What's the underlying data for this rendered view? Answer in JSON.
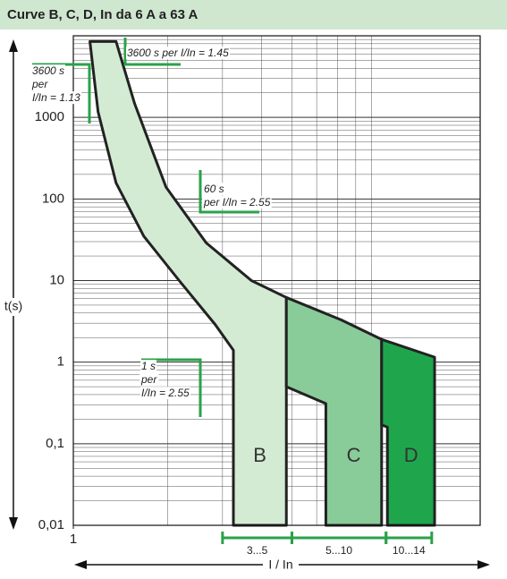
{
  "chart_data": {
    "type": "zones",
    "title": "Curve B, C, D,  In da 6 A a 63 A",
    "y_label": "t(s)",
    "x_label": "I / In",
    "log_x": true,
    "log_y": true,
    "grid": true,
    "xlim": [
      1,
      20
    ],
    "xticks": [
      1
    ],
    "ylim": [
      0.01,
      10000
    ],
    "yticks": [
      {
        "value": 0.01,
        "label": "0,01"
      },
      {
        "value": 0.1,
        "label": "0,1"
      },
      1,
      10,
      100,
      1000
    ],
    "series": [
      {
        "name": "B",
        "color": "#d3ebd3",
        "x": [
          1.13,
          1.2,
          1.37,
          1.68,
          2.18,
          2.84,
          3.25,
          3.25,
          4.8,
          4.8,
          3.71,
          2.66,
          1.98,
          1.57,
          1.37
        ],
        "y": [
          8500,
          1170,
          157,
          35,
          10,
          2.9,
          1.4,
          0.01,
          0.01,
          6.2,
          10,
          29,
          139,
          1480,
          8500
        ]
      },
      {
        "name": "C",
        "color": "#8acb9a",
        "x": [
          4.8,
          7.18,
          9.68,
          9.68,
          6.42,
          6.42,
          4.8
        ],
        "y": [
          6.2,
          3.3,
          1.9,
          0.01,
          0.01,
          0.31,
          0.5
        ]
      },
      {
        "name": "D",
        "color": "#1fa64d",
        "x": [
          9.68,
          14.3,
          14.3,
          10.1,
          10.1,
          9.68
        ],
        "y": [
          1.9,
          1.15,
          0.01,
          0.01,
          0.16,
          0.17
        ]
      }
    ],
    "ranges": [
      {
        "label": "3...5",
        "from": 3,
        "to": 5
      },
      {
        "label": "5...10",
        "from": 5,
        "to": 10
      },
      {
        "label": "10...14",
        "from": 10,
        "to": 14
      }
    ],
    "annotations": [
      {
        "lines": [
          "3600 s",
          "per",
          "I/In = 1.13"
        ]
      },
      {
        "lines": [
          "3600 s per I/In = 1.45"
        ]
      },
      {
        "lines": [
          "60 s",
          "per I/In = 2.55"
        ]
      },
      {
        "lines": [
          "1 s",
          "per",
          "I/In = 2.55"
        ]
      }
    ]
  }
}
